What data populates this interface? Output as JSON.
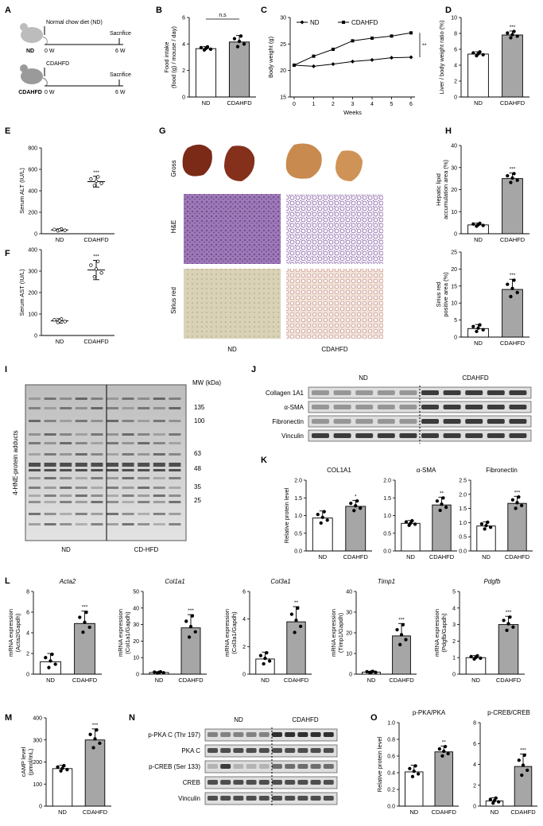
{
  "panels": {
    "A": {
      "letter": "A",
      "nd_diet_label": "Normal chow diet (ND)",
      "nd_mouse_label": "ND",
      "cdahfd_diet_label": "CDAHFD",
      "cdahfd_mouse_label": "CDAHFD",
      "start_label": "0 W",
      "end_label": "6 W",
      "sacrifice_label": "Sacrifice"
    },
    "G": {
      "letter": "G",
      "row_labels": [
        "Gross",
        "H&E",
        "Sirius red"
      ],
      "col_labels": [
        "ND",
        "CDAHFD"
      ]
    },
    "I": {
      "letter": "I",
      "ylabel": "4-HNE-protein adducts",
      "mw_title": "MW (kDa)",
      "mw_marks": [
        "135",
        "100",
        "63",
        "48",
        "35",
        "25"
      ],
      "group_labels": [
        "ND",
        "CD-HFD"
      ]
    },
    "J": {
      "letter": "J",
      "group_labels": [
        "ND",
        "CDAHFD"
      ],
      "rows": [
        "Collagen 1A1",
        "α-SMA",
        "Fibronectin",
        "Vinculin"
      ]
    },
    "N": {
      "letter": "N",
      "group_labels": [
        "ND",
        "CDAHFD"
      ],
      "rows": [
        "p-PKA C (Thr 197)",
        "PKA C",
        "p-CREB (Ser 133)",
        "CREB",
        "Vinculin"
      ]
    }
  },
  "colors": {
    "nd_bar": "#ffffff",
    "cdahfd_bar": "#a6a6a6",
    "axis": "#000000"
  },
  "chart_data": [
    {
      "id": "B",
      "letter": "B",
      "type": "bar",
      "categories": [
        "ND",
        "CDAHFD"
      ],
      "values": [
        3.65,
        4.15
      ],
      "errors": [
        0.15,
        0.5
      ],
      "ylabel": "Food intake\n(food (g) / mouse / day)",
      "ylim": [
        0,
        6
      ],
      "yticks": [
        "0",
        "2",
        "4",
        "6"
      ],
      "sig": [
        "",
        ""
      ],
      "bracket": "n.s"
    },
    {
      "id": "C",
      "letter": "C",
      "type": "line",
      "x": [
        0,
        1,
        2,
        3,
        4,
        5,
        6
      ],
      "series": [
        {
          "name": "ND",
          "values": [
            21,
            20.8,
            21.2,
            21.7,
            22.0,
            22.4,
            22.5
          ]
        },
        {
          "name": "CDAHFD",
          "values": [
            21,
            22.7,
            24,
            25.6,
            26.1,
            26.5,
            27.1
          ]
        }
      ],
      "xlabel": "Weeks",
      "ylabel": "Body weight (g)",
      "xticks": [
        "0",
        "1",
        "2",
        "3",
        "4",
        "5",
        "6"
      ],
      "ylim": [
        15,
        30
      ],
      "yticks": [
        "15",
        "20",
        "25",
        "30"
      ],
      "sig": "**",
      "legend": "top-left"
    },
    {
      "id": "D",
      "letter": "D",
      "type": "bar",
      "categories": [
        "ND",
        "CDAHFD"
      ],
      "values": [
        5.4,
        7.8
      ],
      "errors": [
        0.3,
        0.5
      ],
      "ylabel": "Liver / body weight ratio (%)",
      "ylim": [
        0,
        10
      ],
      "yticks": [
        "0",
        "2",
        "4",
        "6",
        "8",
        "10"
      ],
      "sig": [
        "",
        "***"
      ]
    },
    {
      "id": "E",
      "letter": "E",
      "type": "scatter",
      "categories": [
        "ND",
        "CDAHFD"
      ],
      "values": [
        35,
        485
      ],
      "errors": [
        10,
        50
      ],
      "ylabel": "Serum ALT (IU/L)",
      "ylim": [
        0,
        800
      ],
      "yticks": [
        "0",
        "200",
        "400",
        "600",
        "800"
      ],
      "sig": [
        "",
        "***"
      ]
    },
    {
      "id": "F",
      "letter": "F",
      "type": "scatter",
      "categories": [
        "ND",
        "CDAHFD"
      ],
      "values": [
        68,
        305
      ],
      "errors": [
        10,
        45
      ],
      "ylabel": "Serum AST (IU/L)",
      "ylim": [
        0,
        400
      ],
      "yticks": [
        "0",
        "100",
        "200",
        "300",
        "400"
      ],
      "sig": [
        "",
        "***"
      ]
    },
    {
      "id": "H1",
      "letter": "H",
      "type": "bar",
      "categories": [
        "ND",
        "CDAHFD"
      ],
      "values": [
        4,
        25
      ],
      "errors": [
        0.8,
        2.5
      ],
      "ylabel": "Hepatic lipid\naccumulation area (%)",
      "ylim": [
        0,
        40
      ],
      "yticks": [
        "0",
        "10",
        "20",
        "30",
        "40"
      ],
      "sig": [
        "",
        "***"
      ]
    },
    {
      "id": "H2",
      "letter": "",
      "type": "bar",
      "categories": [
        "ND",
        "CDAHFD"
      ],
      "values": [
        2.5,
        14
      ],
      "errors": [
        1.2,
        3
      ],
      "ylabel": "Sirius red\npositive area (%)",
      "ylim": [
        0,
        25
      ],
      "yticks": [
        "0",
        "5",
        "10",
        "15",
        "20",
        "25"
      ],
      "sig": [
        "",
        "***"
      ]
    },
    {
      "id": "K1",
      "letter": "K",
      "type": "bar",
      "title": "COL1A1",
      "categories": [
        "ND",
        "CDAHFD"
      ],
      "values": [
        0.93,
        1.26
      ],
      "errors": [
        0.2,
        0.17
      ],
      "ylabel": "Relative protein level",
      "ylim": [
        0,
        2.0
      ],
      "yticks": [
        "0.0",
        "0.5",
        "1.0",
        "1.5",
        "2.0"
      ],
      "sig": [
        "",
        "*"
      ]
    },
    {
      "id": "K2",
      "letter": "",
      "type": "bar",
      "title": "α-SMA",
      "categories": [
        "ND",
        "CDAHFD"
      ],
      "values": [
        0.78,
        1.3
      ],
      "errors": [
        0.08,
        0.22
      ],
      "ylabel": "",
      "ylim": [
        0,
        2.0
      ],
      "yticks": [
        "0.0",
        "0.5",
        "1.0",
        "1.5",
        "2.0"
      ],
      "sig": [
        "",
        "**"
      ]
    },
    {
      "id": "K3",
      "letter": "",
      "type": "bar",
      "title": "Fibronectin",
      "categories": [
        "ND",
        "CDAHFD"
      ],
      "values": [
        0.88,
        1.68
      ],
      "errors": [
        0.15,
        0.25
      ],
      "ylabel": "",
      "ylim": [
        0,
        2.5
      ],
      "yticks": [
        "0.0",
        "0.5",
        "1.0",
        "1.5",
        "2.0",
        "2.5"
      ],
      "sig": [
        "",
        "***"
      ]
    },
    {
      "id": "L1",
      "letter": "L",
      "type": "bar",
      "title": "Acta2",
      "categories": [
        "ND",
        "CDAHFD"
      ],
      "values": [
        1.2,
        4.9
      ],
      "errors": [
        0.8,
        1.2
      ],
      "ylabel": "mRNA expression\n(Acta2/Gapdh)",
      "ylim": [
        0,
        8
      ],
      "yticks": [
        "0",
        "2",
        "4",
        "6",
        "8"
      ],
      "sig": [
        "",
        "***"
      ]
    },
    {
      "id": "L2",
      "letter": "",
      "type": "bar",
      "title": "Col1a1",
      "categories": [
        "ND",
        "CDAHFD"
      ],
      "values": [
        1,
        28
      ],
      "errors": [
        0.5,
        8
      ],
      "ylabel": "mRNA expression\n(Col1a1/Gapdh)",
      "ylim": [
        0,
        50
      ],
      "yticks": [
        "0",
        "10",
        "20",
        "30",
        "40",
        "50"
      ],
      "sig": [
        "",
        "***"
      ]
    },
    {
      "id": "L3",
      "letter": "",
      "type": "bar",
      "title": "Col3a1",
      "categories": [
        "ND",
        "CDAHFD"
      ],
      "values": [
        1.1,
        3.8
      ],
      "errors": [
        0.5,
        1.1
      ],
      "ylabel": "mRNA expression\n(Col3a1/Gapdh)",
      "ylim": [
        0,
        6
      ],
      "yticks": [
        "0",
        "2",
        "4",
        "6"
      ],
      "sig": [
        "",
        "**"
      ]
    },
    {
      "id": "L4",
      "letter": "",
      "type": "bar",
      "title": "Timp1",
      "categories": [
        "ND",
        "CDAHFD"
      ],
      "values": [
        1,
        18.5
      ],
      "errors": [
        0.4,
        6
      ],
      "ylabel": "mRNA expression\n(Timp1/Gapdh)",
      "ylim": [
        0,
        40
      ],
      "yticks": [
        "0",
        "10",
        "20",
        "30",
        "40"
      ],
      "sig": [
        "",
        "***"
      ]
    },
    {
      "id": "L5",
      "letter": "",
      "type": "bar",
      "title": "Pdgfb",
      "categories": [
        "ND",
        "CDAHFD"
      ],
      "values": [
        1,
        3
      ],
      "errors": [
        0.12,
        0.5
      ],
      "ylabel": "mRNA expression\n(Pdgfb/Gapdh)",
      "ylim": [
        0,
        5
      ],
      "yticks": [
        "0",
        "1",
        "2",
        "3",
        "4",
        "5"
      ],
      "sig": [
        "",
        "***"
      ]
    },
    {
      "id": "M",
      "letter": "M",
      "type": "bar",
      "categories": [
        "ND",
        "CDAHFD"
      ],
      "values": [
        170,
        300
      ],
      "errors": [
        15,
        50
      ],
      "ylabel": "cAMP level\n(pmol/mL)",
      "ylim": [
        0,
        400
      ],
      "yticks": [
        "0",
        "100",
        "200",
        "300",
        "400"
      ],
      "sig": [
        "",
        "***"
      ]
    },
    {
      "id": "O1",
      "letter": "O",
      "type": "bar",
      "title": "p-PKA/PKA",
      "categories": [
        "ND",
        "CDAHFD"
      ],
      "values": [
        0.41,
        0.65
      ],
      "errors": [
        0.08,
        0.07
      ],
      "ylabel": "Relative protein level",
      "ylim": [
        0,
        1.0
      ],
      "yticks": [
        "0.0",
        "0.2",
        "0.4",
        "0.6",
        "0.8",
        "1.0"
      ],
      "sig": [
        "",
        "**"
      ]
    },
    {
      "id": "O2",
      "letter": "",
      "type": "bar",
      "title": "p-CREB/CREB",
      "categories": [
        "ND",
        "CDAHFD"
      ],
      "values": [
        0.5,
        3.8
      ],
      "errors": [
        0.3,
        1.2
      ],
      "ylabel": "",
      "ylim": [
        0,
        8
      ],
      "yticks": [
        "0",
        "2",
        "4",
        "6",
        "8"
      ],
      "sig": [
        "",
        "***"
      ]
    }
  ]
}
